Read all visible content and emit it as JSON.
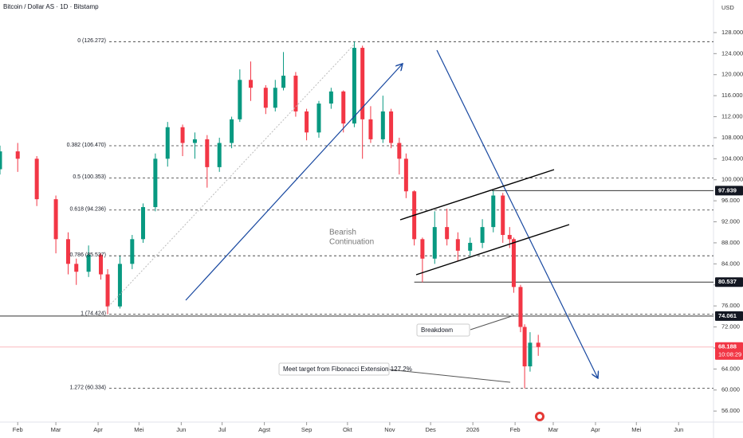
{
  "chart_data": {
    "type": "candlestick",
    "title": "Bitcoin / Dollar AS · 1D · Bitstamp",
    "y_axis_label": "USD",
    "x": [
      18,
      31,
      45,
      59,
      68,
      74,
      83,
      92,
      97,
      106,
      115,
      123,
      132,
      141,
      152,
      161,
      170,
      179,
      188,
      194,
      202,
      213,
      220,
      226,
      235,
      243,
      252,
      261,
      270,
      278,
      284,
      290,
      299,
      305,
      311,
      316,
      322,
      328,
      337,
      346,
      354,
      363,
      372,
      380,
      387,
      392,
      395,
      400,
      403,
      407,
      413
    ],
    "open": [
      102,
      105.4,
      104,
      96.3,
      88.7,
      84,
      82.5,
      85.7,
      82,
      75.9,
      84,
      88.7,
      94.8,
      104,
      110,
      107,
      107.7,
      102.4,
      107,
      111.5,
      119,
      117.5,
      113.7,
      117.5,
      119.8,
      113,
      109,
      114.5,
      116.8,
      110.7,
      125.1,
      111.5,
      107.7,
      113,
      107,
      104,
      97.8,
      88.7,
      85,
      91,
      88.7,
      86.5,
      88,
      91,
      97,
      89.5,
      88.7,
      79.6,
      72,
      64.5,
      69
    ],
    "high": [
      106.5,
      107,
      104.5,
      97,
      90,
      85,
      87.5,
      86,
      83,
      85.5,
      89.5,
      95.5,
      105,
      111,
      110.5,
      109,
      108.5,
      108,
      112,
      121,
      122.5,
      118,
      119,
      124.3,
      120.5,
      113.5,
      115,
      117.5,
      117,
      126.3,
      125.5,
      114,
      116,
      113.5,
      108,
      105,
      98,
      89,
      94,
      94.5,
      90,
      89,
      92.5,
      97.9,
      97.5,
      91,
      89,
      80,
      72.5,
      71,
      70.5
    ],
    "low": [
      101,
      101.5,
      95,
      86,
      82,
      80,
      81.5,
      81,
      74.4,
      75.5,
      83,
      88,
      94,
      102.5,
      104.5,
      104,
      98.5,
      101.5,
      106,
      111,
      115,
      112.5,
      113,
      117,
      112,
      107.5,
      108,
      113.5,
      109,
      110,
      104,
      107,
      107,
      106,
      101,
      96.5,
      87.5,
      80.5,
      84,
      87.5,
      84.5,
      85.5,
      87,
      90,
      88,
      87,
      78.5,
      71,
      60.3,
      63.5,
      66.5
    ],
    "close": [
      105.4,
      104,
      96.3,
      88.7,
      84,
      82.5,
      85.7,
      82,
      75.9,
      84,
      88.7,
      94.8,
      104,
      110,
      107,
      107.7,
      102.4,
      107,
      111.5,
      119,
      117.5,
      113.7,
      117.5,
      119.8,
      113,
      109,
      114.5,
      116.8,
      110.7,
      125.1,
      111.5,
      107.7,
      113,
      107,
      104,
      97.8,
      88.7,
      85,
      91,
      88.7,
      86.5,
      88,
      91,
      97,
      89.5,
      88.7,
      79.6,
      72,
      64.5,
      69,
      68.188
    ],
    "up_color": "#089981",
    "down_color": "#f23645",
    "xlim": [
      18,
      541.6
    ],
    "xticks": [
      {
        "value": 31,
        "label": "Feb"
      },
      {
        "value": 59,
        "label": "Mar"
      },
      {
        "value": 90,
        "label": "Apr"
      },
      {
        "value": 120,
        "label": "Mei"
      },
      {
        "value": 151,
        "label": "Jun"
      },
      {
        "value": 181,
        "label": "Jul"
      },
      {
        "value": 212,
        "label": "Agst"
      },
      {
        "value": 243,
        "label": "Sep"
      },
      {
        "value": 273,
        "label": "Okt"
      },
      {
        "value": 304,
        "label": "Nov"
      },
      {
        "value": 334,
        "label": "Des"
      },
      {
        "value": 365,
        "label": "2026"
      },
      {
        "value": 396,
        "label": "Feb"
      },
      {
        "value": 424,
        "label": "Mar"
      },
      {
        "value": 455,
        "label": "Apr"
      },
      {
        "value": 485,
        "label": "Mei"
      },
      {
        "value": 516,
        "label": "Jun"
      }
    ],
    "ylim": [
      53.9,
      134.2
    ],
    "yticks": [
      {
        "value": 56,
        "label": "56.000"
      },
      {
        "value": 60,
        "label": "60.000"
      },
      {
        "value": 64,
        "label": "64.000"
      },
      {
        "value": 68,
        "label": "68.000"
      },
      {
        "value": 72,
        "label": "72.000"
      },
      {
        "value": 76,
        "label": "76.000"
      },
      {
        "value": 80,
        "label": "80.000"
      },
      {
        "value": 84,
        "label": "84.000"
      },
      {
        "value": 88,
        "label": "88.000"
      },
      {
        "value": 92,
        "label": "92.000"
      },
      {
        "value": 96,
        "label": "96.000"
      },
      {
        "value": 100,
        "label": "100.000"
      },
      {
        "value": 104,
        "label": "104.000"
      },
      {
        "value": 108,
        "label": "108.000"
      },
      {
        "value": 112,
        "label": "112.000"
      },
      {
        "value": 116,
        "label": "116.000"
      },
      {
        "value": 120,
        "label": "120.000"
      },
      {
        "value": 124,
        "label": "124.000"
      },
      {
        "value": 128,
        "label": "128.000"
      }
    ],
    "fib_levels": [
      {
        "value": 126.272,
        "label": "0 (126.272)"
      },
      {
        "value": 106.47,
        "label": "0.382 (106.470)"
      },
      {
        "value": 100.353,
        "label": "0.5 (100.353)"
      },
      {
        "value": 94.236,
        "label": "0.618 (94.236)"
      },
      {
        "value": 85.537,
        "label": "0.786 (85.537)"
      },
      {
        "value": 74.424,
        "label": "1 (74.424)"
      },
      {
        "value": 60.334,
        "label": "1.272 (60.334)"
      }
    ],
    "levels": [
      {
        "value": 97.939,
        "label": "97.939",
        "from": 379
      },
      {
        "value": 80.537,
        "label": "80.537",
        "from": 322
      },
      {
        "value": 74.061,
        "label": "74.061",
        "from": 18
      }
    ],
    "last_price": {
      "value": 68.188,
      "label": "68.188",
      "countdown": "10:08:29",
      "color": "#f23645"
    },
    "annotations": {
      "bearish": "Bearish",
      "continuation": "Continuation",
      "breakdown": "Breakdown",
      "target": "Meet target from Fibonacci Extension 127.2%"
    }
  }
}
